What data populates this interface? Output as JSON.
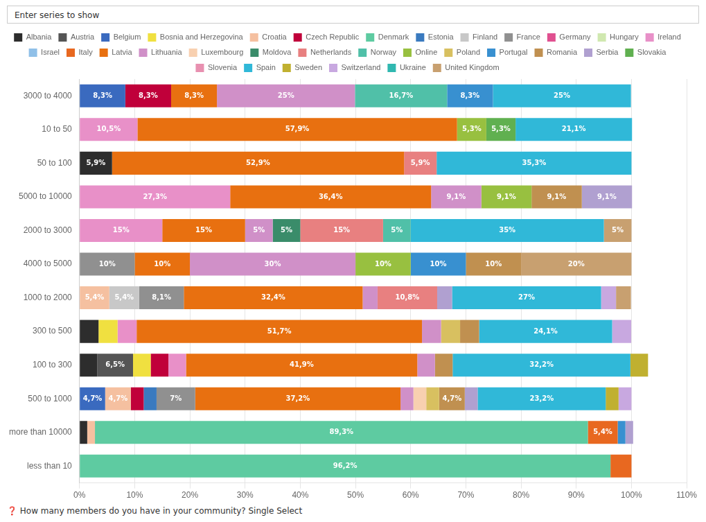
{
  "chart_data": {
    "type": "bar",
    "orientation": "horizontal",
    "stacked": true,
    "data_labels": true,
    "grid": true,
    "legend": "top",
    "annotations": [
      "Enter series to show",
      "❓ How many members do you have in your community? Single Select"
    ],
    "categories": [
      "less than 10",
      "more than 10000",
      "500 to 1000",
      "100 to 300",
      "300 to 500",
      "1000 to 2000",
      "4000 to 5000",
      "2000 to 3000",
      "5000 to 10000",
      "50 to 100",
      "10 to 50",
      "3000 to 4000"
    ],
    "xlim": [
      0,
      110
    ],
    "xticks": [
      {
        "value": 0,
        "label": "0%"
      },
      {
        "value": 10,
        "label": "10%"
      },
      {
        "value": 20,
        "label": "20%"
      },
      {
        "value": 30,
        "label": "30%"
      },
      {
        "value": 40,
        "label": "40%"
      },
      {
        "value": 50,
        "label": "50%"
      },
      {
        "value": 60,
        "label": "60%"
      },
      {
        "value": 70,
        "label": "70%"
      },
      {
        "value": 80,
        "label": "80%"
      },
      {
        "value": 90,
        "label": "90%"
      },
      {
        "value": 100,
        "label": "100%"
      },
      {
        "value": 110,
        "label": "110%"
      }
    ],
    "series": [
      {
        "name": "Albania",
        "color": "#2d2d2d",
        "values": [
          null,
          1.4,
          null,
          3.2,
          3.45,
          null,
          null,
          null,
          null,
          5.9,
          null,
          null
        ],
        "value_labels": [
          null,
          null,
          null,
          null,
          null,
          null,
          null,
          null,
          null,
          "5,9%",
          null,
          null
        ]
      },
      {
        "name": "Austria",
        "color": "#555555",
        "values": [
          null,
          null,
          null,
          6.5,
          null,
          null,
          null,
          null,
          null,
          null,
          null,
          null
        ],
        "value_labels": [
          null,
          null,
          null,
          "6,5%",
          null,
          null,
          null,
          null,
          null,
          null,
          null,
          null
        ]
      },
      {
        "name": "Belgium",
        "color": "#3a6abf",
        "values": [
          null,
          null,
          4.65,
          null,
          null,
          null,
          null,
          null,
          null,
          null,
          null,
          8.3
        ],
        "value_labels": [
          null,
          null,
          "4,7%",
          null,
          null,
          null,
          null,
          null,
          null,
          null,
          null,
          "8,3%"
        ]
      },
      {
        "name": "Bosnia and Herzegovina",
        "color": "#f0e040",
        "values": [
          null,
          null,
          null,
          3.2,
          3.45,
          null,
          null,
          null,
          null,
          null,
          null,
          null
        ],
        "value_labels": [
          null,
          null,
          null,
          null,
          null,
          null,
          null,
          null,
          null,
          null,
          null,
          null
        ]
      },
      {
        "name": "Croatia",
        "color": "#f5c0a0",
        "values": [
          null,
          1.4,
          4.65,
          null,
          null,
          5.4,
          null,
          null,
          null,
          null,
          null,
          null
        ],
        "value_labels": [
          null,
          null,
          "4,7%",
          null,
          null,
          "5,4%",
          null,
          null,
          null,
          null,
          null,
          null
        ]
      },
      {
        "name": "Czech Republic",
        "color": "#c0003a",
        "values": [
          null,
          null,
          2.33,
          3.2,
          null,
          null,
          null,
          null,
          null,
          null,
          null,
          8.3
        ],
        "value_labels": [
          null,
          null,
          null,
          null,
          null,
          null,
          null,
          null,
          null,
          null,
          null,
          "8,3%"
        ]
      },
      {
        "name": "Denmark",
        "color": "#5ecba1",
        "values": [
          96.2,
          89.3,
          null,
          null,
          null,
          null,
          null,
          null,
          null,
          null,
          null,
          null
        ],
        "value_labels": [
          "96,2%",
          "89,3%",
          null,
          null,
          null,
          null,
          null,
          null,
          null,
          null,
          null,
          null
        ]
      },
      {
        "name": "Estonia",
        "color": "#3a7abf",
        "values": [
          null,
          null,
          2.33,
          null,
          null,
          null,
          null,
          null,
          null,
          null,
          null,
          null
        ],
        "value_labels": [
          null,
          null,
          null,
          null,
          null,
          null,
          null,
          null,
          null,
          null,
          null,
          null
        ]
      },
      {
        "name": "Finland",
        "color": "#c8c8c8",
        "values": [
          null,
          null,
          null,
          null,
          null,
          5.4,
          null,
          null,
          null,
          null,
          null,
          null
        ],
        "value_labels": [
          null,
          null,
          null,
          null,
          null,
          "5,4%",
          null,
          null,
          null,
          null,
          null,
          null
        ]
      },
      {
        "name": "France",
        "color": "#909090",
        "values": [
          null,
          null,
          7.0,
          null,
          null,
          8.1,
          10.0,
          null,
          null,
          null,
          null,
          null
        ],
        "value_labels": [
          null,
          null,
          "7%",
          null,
          null,
          "8,1%",
          "10%",
          null,
          null,
          null,
          null,
          null
        ]
      },
      {
        "name": "Germany",
        "color": "#e05090",
        "values": [
          null,
          null,
          null,
          null,
          null,
          null,
          null,
          null,
          null,
          null,
          null,
          null
        ],
        "value_labels": [
          null,
          null,
          null,
          null,
          null,
          null,
          null,
          null,
          null,
          null,
          null,
          null
        ]
      },
      {
        "name": "Hungary",
        "color": "#d0e8b0",
        "values": [
          null,
          null,
          null,
          null,
          null,
          null,
          null,
          null,
          null,
          null,
          null,
          null
        ],
        "value_labels": [
          null,
          null,
          null,
          null,
          null,
          null,
          null,
          null,
          null,
          null,
          null,
          null
        ]
      },
      {
        "name": "Ireland",
        "color": "#e890c8",
        "values": [
          null,
          null,
          null,
          3.2,
          3.45,
          null,
          null,
          15.0,
          27.3,
          null,
          10.5,
          null
        ],
        "value_labels": [
          null,
          null,
          null,
          null,
          null,
          null,
          null,
          "15%",
          "27,3%",
          null,
          "10,5%",
          null
        ]
      },
      {
        "name": "Israel",
        "color": "#90c0e8",
        "values": [
          null,
          null,
          null,
          null,
          null,
          null,
          null,
          null,
          null,
          null,
          null,
          null
        ],
        "value_labels": [
          null,
          null,
          null,
          null,
          null,
          null,
          null,
          null,
          null,
          null,
          null,
          null
        ]
      },
      {
        "name": "Italy",
        "color": "#e86820",
        "values": [
          3.8,
          5.4,
          null,
          null,
          null,
          null,
          null,
          null,
          null,
          null,
          null,
          null
        ],
        "value_labels": [
          null,
          "5,4%",
          null,
          null,
          null,
          null,
          null,
          null,
          null,
          null,
          null,
          null
        ]
      },
      {
        "name": "Latvia",
        "color": "#e87010",
        "values": [
          null,
          null,
          37.2,
          41.9,
          51.7,
          32.4,
          10.0,
          15.0,
          36.4,
          52.9,
          57.9,
          8.3
        ],
        "value_labels": [
          null,
          null,
          "37,2%",
          "41,9%",
          "51,7%",
          "32,4%",
          "10%",
          "15%",
          "36,4%",
          "52,9%",
          "57,9%",
          "8,3%"
        ]
      },
      {
        "name": "Lithuania",
        "color": "#d090c8",
        "values": [
          null,
          null,
          2.33,
          3.2,
          3.45,
          2.7,
          30.0,
          5.0,
          9.1,
          null,
          null,
          25.0
        ],
        "value_labels": [
          null,
          null,
          null,
          null,
          null,
          null,
          "30%",
          "5%",
          "9,1%",
          null,
          null,
          "25%"
        ]
      },
      {
        "name": "Luxembourg",
        "color": "#f8d0b0",
        "values": [
          null,
          null,
          2.33,
          null,
          null,
          null,
          null,
          null,
          null,
          null,
          null,
          null
        ],
        "value_labels": [
          null,
          null,
          null,
          null,
          null,
          null,
          null,
          null,
          null,
          null,
          null,
          null
        ]
      },
      {
        "name": "Moldova",
        "color": "#3a8c6a",
        "values": [
          null,
          null,
          null,
          null,
          null,
          null,
          null,
          5.0,
          null,
          null,
          null,
          null
        ],
        "value_labels": [
          null,
          null,
          null,
          null,
          null,
          null,
          null,
          "5%",
          null,
          null,
          null,
          null
        ]
      },
      {
        "name": "Netherlands",
        "color": "#e88080",
        "values": [
          null,
          null,
          null,
          null,
          null,
          10.8,
          null,
          15.0,
          null,
          5.9,
          null,
          null
        ],
        "value_labels": [
          null,
          null,
          null,
          null,
          null,
          "10,8%",
          null,
          "15%",
          null,
          "5,9%",
          null,
          null
        ]
      },
      {
        "name": "Norway",
        "color": "#50c0a8",
        "values": [
          null,
          null,
          null,
          null,
          null,
          null,
          null,
          5.0,
          null,
          null,
          null,
          16.7
        ],
        "value_labels": [
          null,
          null,
          null,
          null,
          null,
          null,
          null,
          "5%",
          null,
          null,
          null,
          "16,7%"
        ]
      },
      {
        "name": "Online",
        "color": "#98c040",
        "values": [
          null,
          null,
          null,
          null,
          null,
          null,
          10.0,
          null,
          9.1,
          null,
          5.3,
          null
        ],
        "value_labels": [
          null,
          null,
          null,
          null,
          null,
          null,
          "10%",
          null,
          "9,1%",
          null,
          "5,3%",
          null
        ]
      },
      {
        "name": "Poland",
        "color": "#d8c060",
        "values": [
          null,
          null,
          2.33,
          null,
          3.45,
          null,
          null,
          null,
          null,
          null,
          null,
          null
        ],
        "value_labels": [
          null,
          null,
          null,
          null,
          null,
          null,
          null,
          null,
          null,
          null,
          null,
          null
        ]
      },
      {
        "name": "Portugal",
        "color": "#3890d0",
        "values": [
          null,
          1.4,
          null,
          null,
          null,
          null,
          10.0,
          null,
          null,
          null,
          null,
          8.3
        ],
        "value_labels": [
          null,
          null,
          null,
          null,
          null,
          null,
          "10%",
          null,
          null,
          null,
          null,
          "8,3%"
        ]
      },
      {
        "name": "Romania",
        "color": "#c09050",
        "values": [
          null,
          null,
          4.65,
          3.2,
          3.45,
          null,
          10.0,
          null,
          9.1,
          null,
          null,
          null
        ],
        "value_labels": [
          null,
          null,
          "4,7%",
          null,
          null,
          null,
          "10%",
          null,
          "9,1%",
          null,
          null,
          null
        ]
      },
      {
        "name": "Serbia",
        "color": "#b0a0d0",
        "values": [
          null,
          1.4,
          2.33,
          null,
          null,
          2.7,
          null,
          null,
          9.1,
          null,
          null,
          null
        ],
        "value_labels": [
          null,
          null,
          null,
          null,
          null,
          null,
          null,
          null,
          "9,1%",
          null,
          null,
          null
        ]
      },
      {
        "name": "Slovakia",
        "color": "#60b050",
        "values": [
          null,
          null,
          null,
          null,
          null,
          null,
          null,
          null,
          null,
          null,
          5.3,
          null
        ],
        "value_labels": [
          null,
          null,
          null,
          null,
          null,
          null,
          null,
          null,
          null,
          null,
          "5,3%",
          null
        ]
      },
      {
        "name": "Slovenia",
        "color": "#e890b0",
        "values": [
          null,
          null,
          null,
          null,
          null,
          null,
          null,
          null,
          null,
          null,
          null,
          null
        ],
        "value_labels": [
          null,
          null,
          null,
          null,
          null,
          null,
          null,
          null,
          null,
          null,
          null,
          null
        ]
      },
      {
        "name": "Spain",
        "color": "#30b8d8",
        "values": [
          null,
          null,
          23.2,
          32.2,
          24.1,
          27.0,
          null,
          35.0,
          null,
          35.3,
          21.1,
          25.0
        ],
        "value_labels": [
          null,
          null,
          "23,2%",
          "32,2%",
          "24,1%",
          "27%",
          null,
          "35%",
          null,
          "35,3%",
          "21,1%",
          "25%"
        ]
      },
      {
        "name": "Sweden",
        "color": "#c0b030",
        "values": [
          null,
          null,
          2.33,
          3.2,
          null,
          null,
          null,
          null,
          null,
          null,
          null,
          null
        ],
        "value_labels": [
          null,
          null,
          null,
          null,
          null,
          null,
          null,
          null,
          null,
          null,
          null,
          null
        ]
      },
      {
        "name": "Switzerland",
        "color": "#c8a8e0",
        "values": [
          null,
          null,
          2.33,
          null,
          3.45,
          2.7,
          null,
          null,
          null,
          null,
          null,
          null
        ],
        "value_labels": [
          null,
          null,
          null,
          null,
          null,
          null,
          null,
          null,
          null,
          null,
          null,
          null
        ]
      },
      {
        "name": "Ukraine",
        "color": "#30b8b0",
        "values": [
          null,
          null,
          null,
          null,
          null,
          null,
          null,
          null,
          null,
          null,
          null,
          null
        ],
        "value_labels": [
          null,
          null,
          null,
          null,
          null,
          null,
          null,
          null,
          null,
          null,
          null,
          null
        ]
      },
      {
        "name": "United Kingdom",
        "color": "#c8a070",
        "values": [
          null,
          null,
          null,
          null,
          null,
          2.7,
          20.0,
          5.0,
          null,
          null,
          null,
          null
        ],
        "value_labels": [
          null,
          null,
          null,
          null,
          null,
          null,
          "20%",
          "5%",
          null,
          null,
          null,
          null
        ]
      }
    ]
  }
}
